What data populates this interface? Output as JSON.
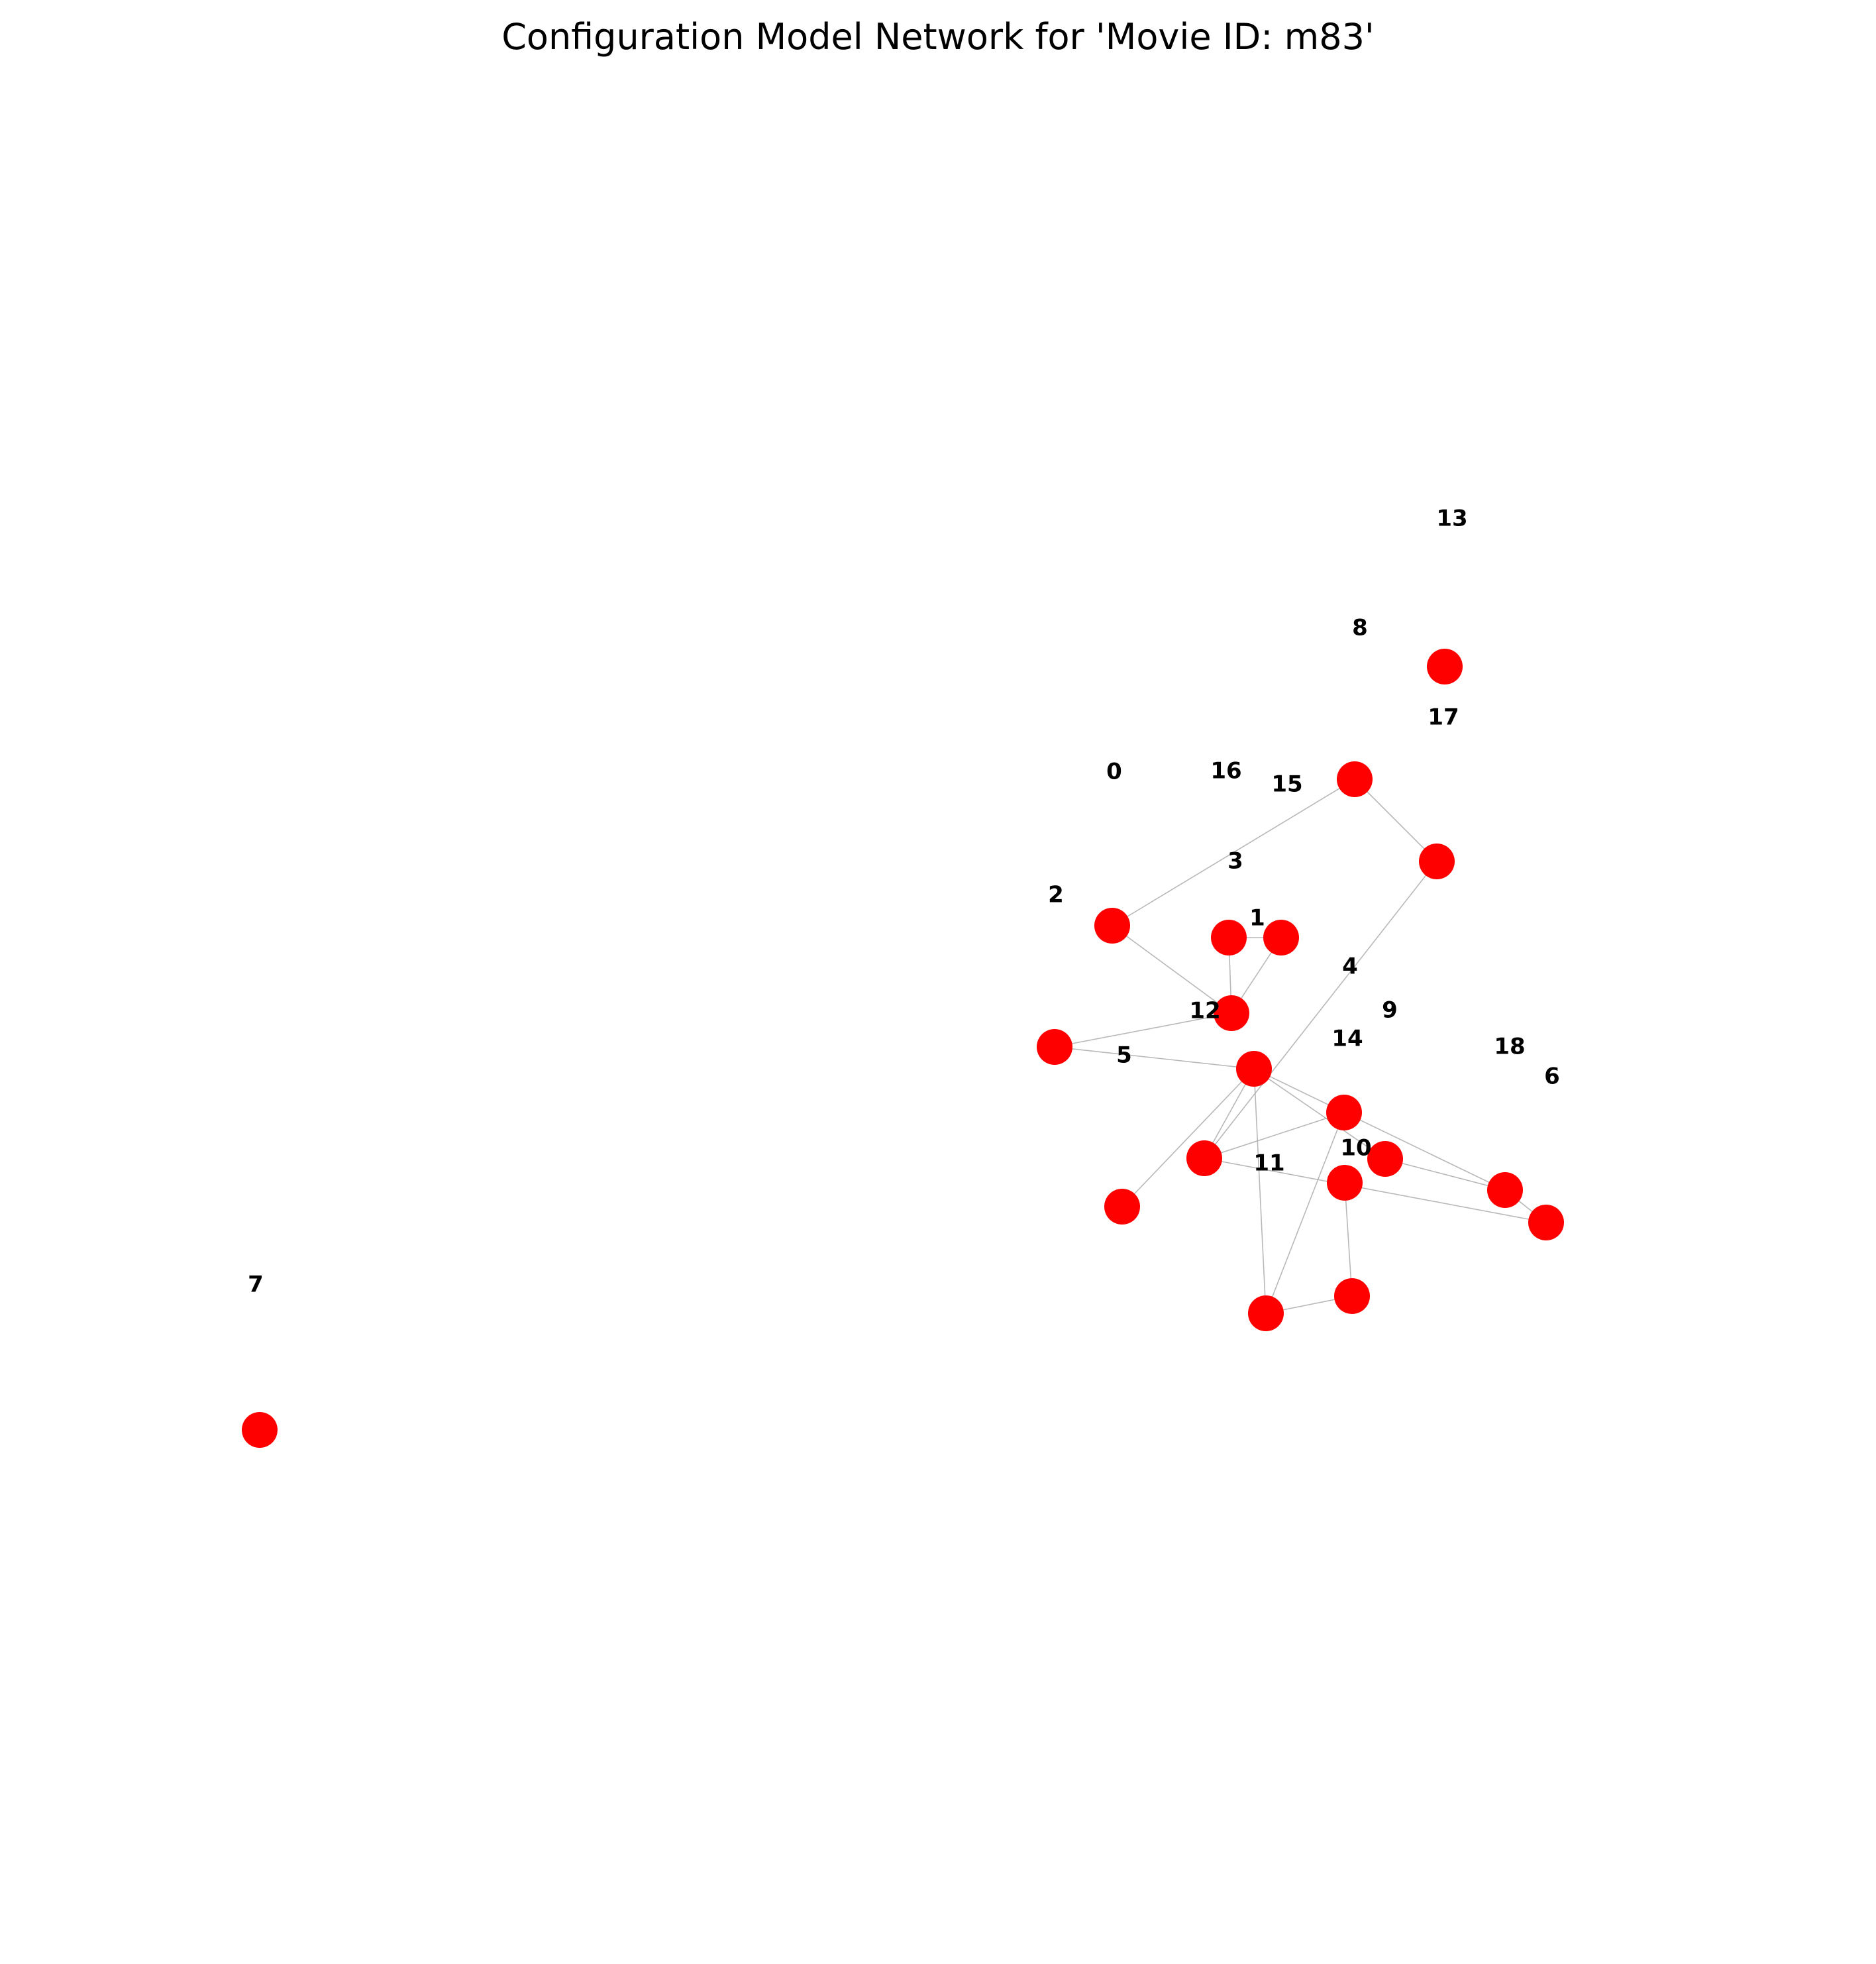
{
  "title": "Configuration Model Network for 'Movie ID: m83'",
  "node_color": "#ff0000",
  "edge_color": "#a6a6a6",
  "labels": [
    "0",
    "1",
    "2",
    "3",
    "4",
    "5",
    "6",
    "7",
    "8",
    "9",
    "10",
    "11",
    "12",
    "13",
    "14",
    "15",
    "16",
    "17",
    "18"
  ]
}
